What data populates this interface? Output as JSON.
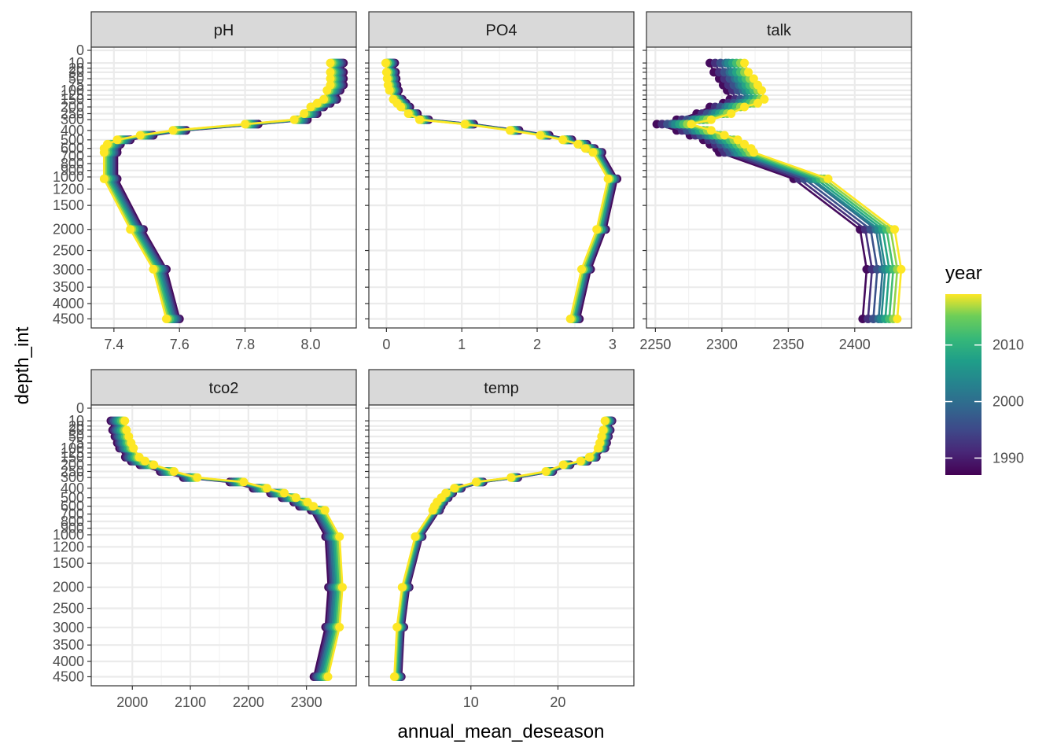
{
  "chart_data": {
    "type": "line",
    "xlabel": "annual_mean_deseason",
    "ylabel": "depth_int",
    "legend": {
      "title": "year",
      "ticks": [
        1990,
        2000,
        2010
      ],
      "range": [
        1987,
        2019
      ],
      "position": "right"
    },
    "colormap": "viridis",
    "grid": true,
    "y_reversed": true,
    "depths": [
      0,
      10,
      20,
      30,
      50,
      75,
      100,
      125,
      150,
      200,
      250,
      300,
      400,
      500,
      600,
      700,
      800,
      900,
      1000,
      1200,
      1500,
      2000,
      2500,
      3000,
      3500,
      4000,
      4500
    ],
    "depth_tick_labels": [
      "0",
      "10",
      "20",
      "30",
      "50",
      "75",
      "100",
      "125",
      "150",
      "200",
      "250",
      "300",
      "400",
      "500",
      "600",
      "700",
      "800",
      "900",
      "1000",
      "1200",
      "1500",
      "2000",
      "2500",
      "3000",
      "3500",
      "4000",
      "4500"
    ],
    "profile_depths": [
      10,
      30,
      50,
      75,
      100,
      150,
      175,
      200,
      250,
      300,
      340,
      400,
      450,
      500,
      550,
      600,
      650,
      1030,
      2000,
      2990,
      4500
    ],
    "years": [
      1988,
      1992,
      1996,
      2000,
      2004,
      2008,
      2012,
      2016,
      2019
    ],
    "panels": [
      {
        "title": "pH",
        "xlim": [
          7.35,
          8.12
        ],
        "xticks": [
          7.4,
          7.6,
          7.8,
          8.0
        ],
        "xtick_labels": [
          "7.4",
          "7.6",
          "7.8",
          "8.0"
        ],
        "base": [
          8.08,
          8.08,
          8.08,
          8.08,
          8.07,
          8.06,
          8.04,
          8.02,
          8.0,
          7.97,
          7.82,
          7.6,
          7.5,
          7.43,
          7.4,
          7.39,
          7.39,
          7.39,
          7.47,
          7.54,
          7.58
        ],
        "year_offsets": [
          0.02,
          0.015,
          0.01,
          0.005,
          0.0,
          -0.005,
          -0.01,
          -0.015,
          -0.02
        ]
      },
      {
        "title": "PO4",
        "xlim": [
          -0.15,
          3.2
        ],
        "xticks": [
          0,
          1,
          2,
          3
        ],
        "xtick_labels": [
          "0",
          "1",
          "2",
          "3"
        ],
        "base": [
          0.05,
          0.06,
          0.07,
          0.08,
          0.1,
          0.15,
          0.2,
          0.25,
          0.35,
          0.5,
          1.1,
          1.7,
          2.1,
          2.4,
          2.6,
          2.7,
          2.8,
          3.0,
          2.85,
          2.65,
          2.5
        ],
        "year_offsets": [
          0.06,
          0.04,
          0.03,
          0.01,
          0.0,
          -0.01,
          -0.03,
          -0.04,
          -0.06
        ]
      },
      {
        "title": "talk",
        "xlim": [
          2248,
          2438
        ],
        "xticks": [
          2250,
          2300,
          2350,
          2400
        ],
        "xtick_labels": [
          "2250",
          "2300",
          "2350",
          "2400"
        ],
        "base": [
          2305,
          2308,
          2312,
          2315,
          2318,
          2320,
          2315,
          2305,
          2295,
          2280,
          2265,
          2280,
          2290,
          2300,
          2305,
          2310,
          2312,
          2368,
          2418,
          2423,
          2420
        ],
        "year_offsets": [
          -14,
          -10,
          -6,
          -2,
          0,
          3,
          6,
          9,
          12
        ]
      },
      {
        "title": "tco2",
        "xlim": [
          1940,
          2375
        ],
        "xticks": [
          2000,
          2100,
          2200,
          2300
        ],
        "xtick_labels": [
          "2000",
          "2100",
          "2200",
          "2300"
        ],
        "base": [
          1975,
          1978,
          1982,
          1986,
          1990,
          2000,
          2010,
          2025,
          2060,
          2100,
          2180,
          2220,
          2250,
          2270,
          2290,
          2300,
          2320,
          2345,
          2350,
          2345,
          2325
        ],
        "year_offsets": [
          -12,
          -9,
          -6,
          -3,
          0,
          3,
          6,
          9,
          12
        ]
      },
      {
        "title": "temp",
        "xlim": [
          -1,
          28
        ],
        "xticks": [
          10,
          20
        ],
        "xtick_labels": [
          "10",
          "20"
        ],
        "base": [
          25.8,
          25.6,
          25.4,
          25.2,
          25.0,
          24.0,
          23.0,
          21.0,
          19.0,
          15.0,
          11.0,
          8.5,
          7.5,
          7.0,
          6.5,
          6.2,
          6.0,
          4.0,
          2.5,
          1.9,
          1.6
        ],
        "year_offsets": [
          0.4,
          0.3,
          0.2,
          0.1,
          0.0,
          -0.1,
          -0.2,
          -0.3,
          -0.4
        ]
      }
    ]
  }
}
